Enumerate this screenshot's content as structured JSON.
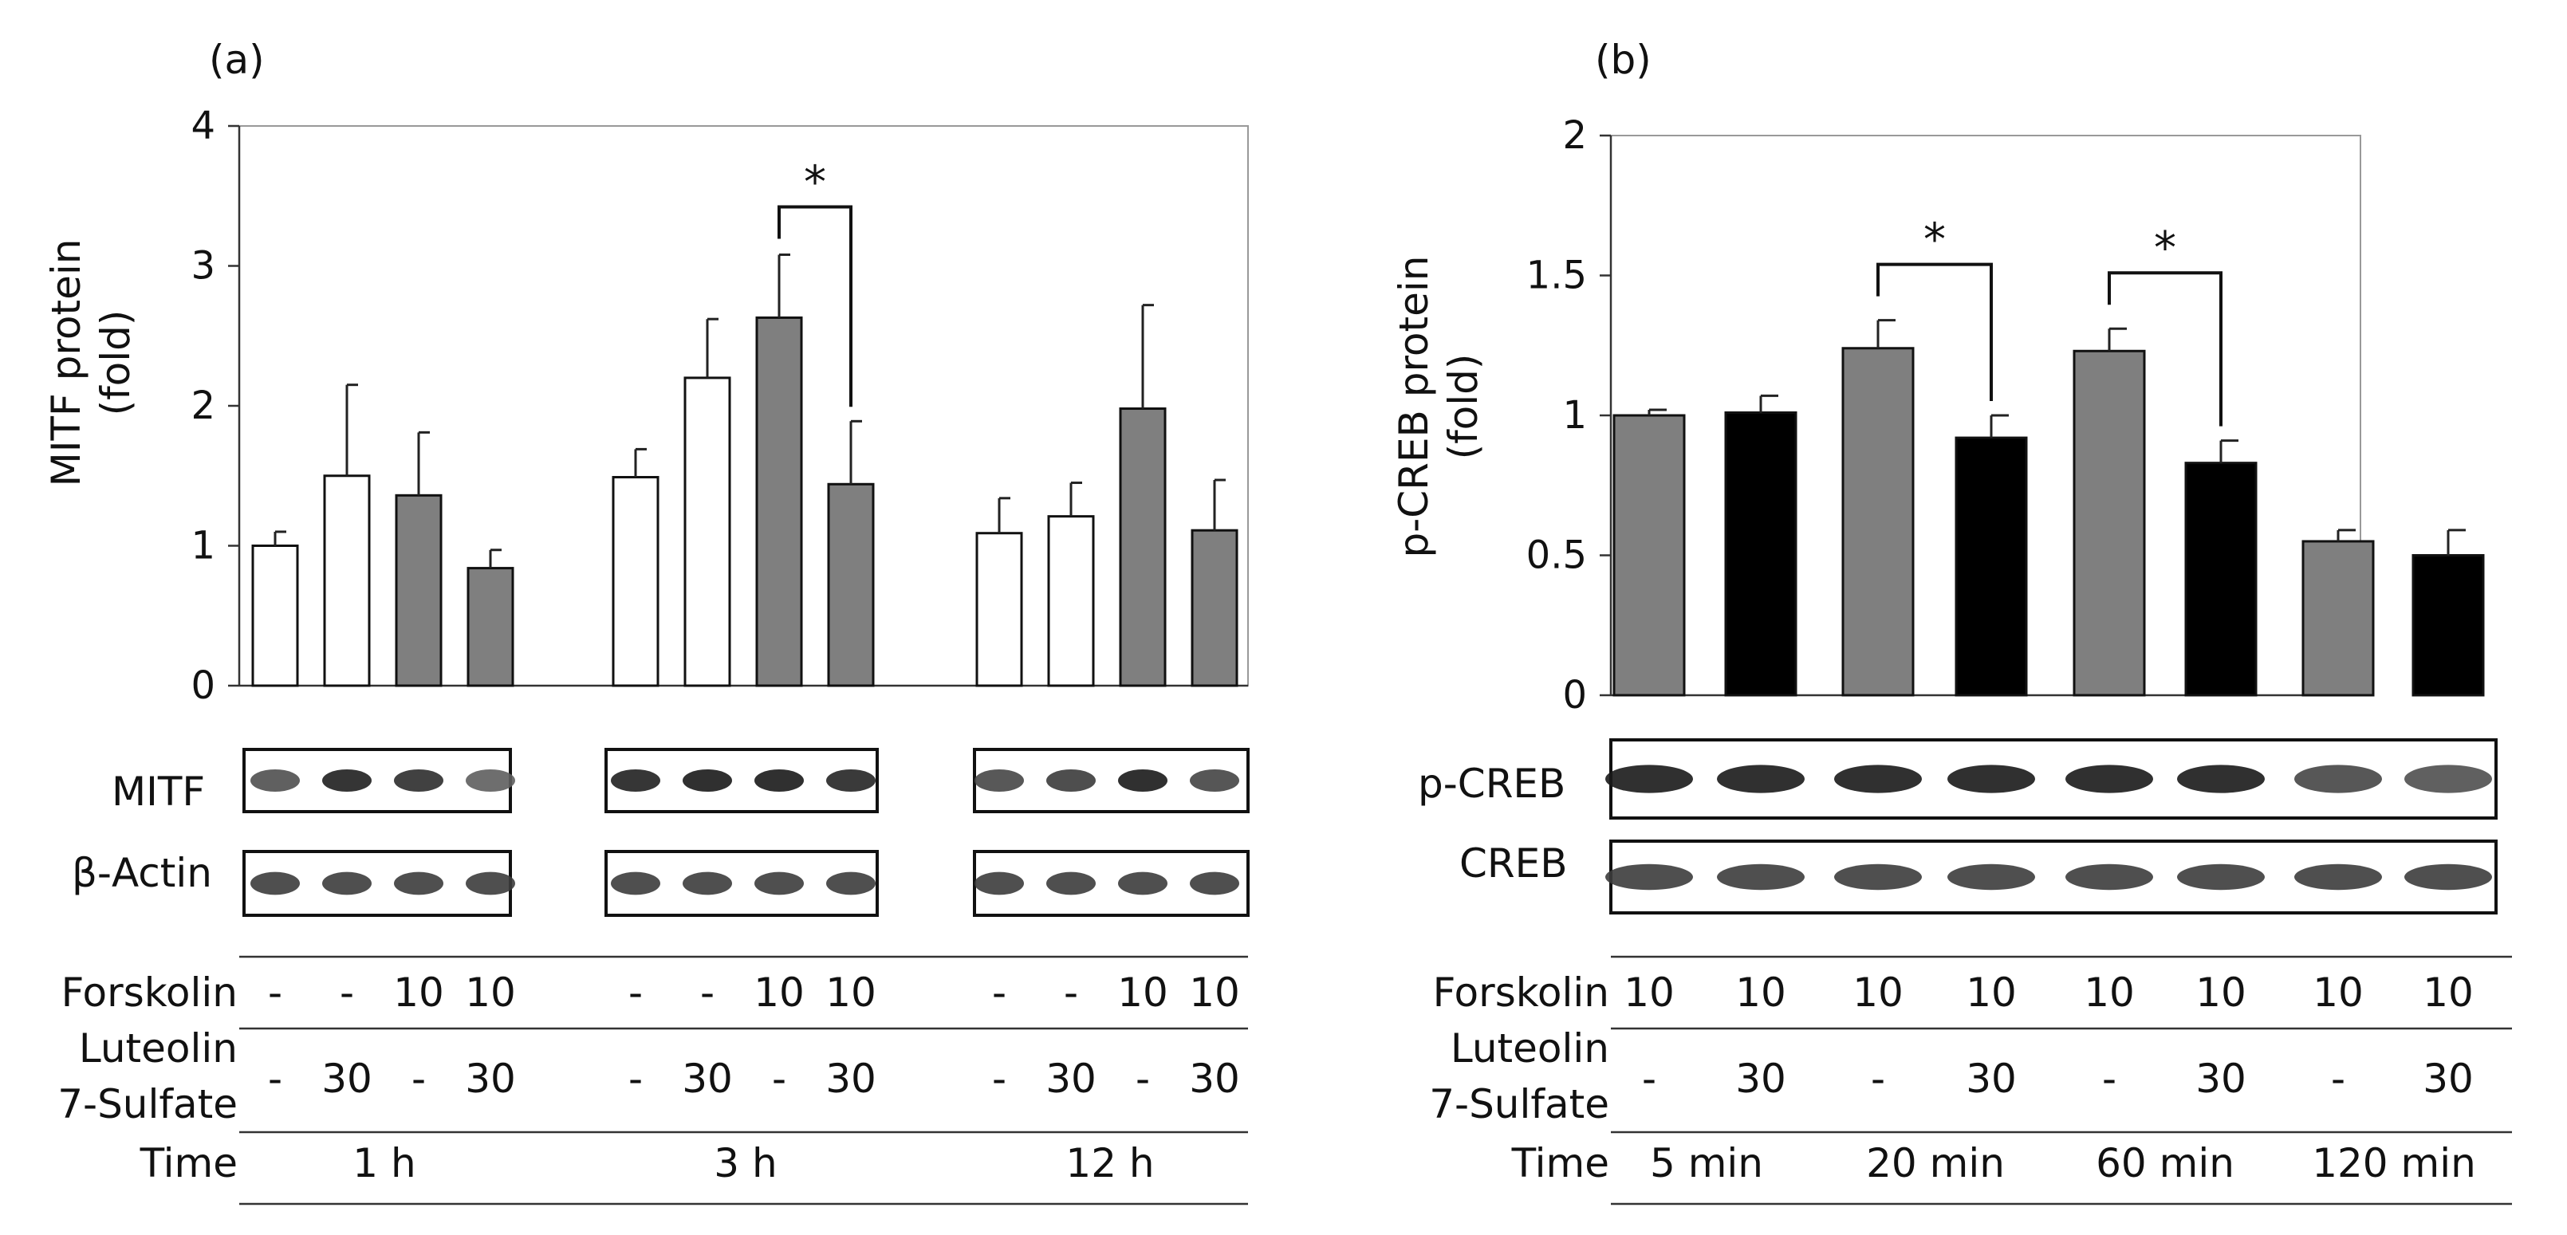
{
  "chart_data": [
    {
      "panel_label": "(a)",
      "type": "bar",
      "ylabel_line1": "MITF  protein",
      "ylabel_line2": "(fold)",
      "ylim": [
        0,
        4
      ],
      "yticks": [
        "0",
        "1",
        "2",
        "3",
        "4"
      ],
      "groups": [
        "1 h",
        "3 h",
        "12 h"
      ],
      "bar_colors": {
        "white": "#ffffff",
        "gray": "#7f7f7f",
        "black": "#000000"
      },
      "bars": [
        {
          "group": "1 h",
          "value": 1.0,
          "error": 0.1,
          "color": "white"
        },
        {
          "group": "1 h",
          "value": 1.5,
          "error": 0.65,
          "color": "white"
        },
        {
          "group": "1 h",
          "value": 1.36,
          "error": 0.45,
          "color": "gray"
        },
        {
          "group": "1 h",
          "value": 0.84,
          "error": 0.13,
          "color": "gray"
        },
        {
          "group": "3 h",
          "value": 1.49,
          "error": 0.2,
          "color": "white"
        },
        {
          "group": "3 h",
          "value": 2.2,
          "error": 0.42,
          "color": "white"
        },
        {
          "group": "3 h",
          "value": 2.63,
          "error": 0.45,
          "color": "gray"
        },
        {
          "group": "3 h",
          "value": 1.44,
          "error": 0.45,
          "color": "gray"
        },
        {
          "group": "12 h",
          "value": 1.09,
          "error": 0.25,
          "color": "white"
        },
        {
          "group": "12 h",
          "value": 1.21,
          "error": 0.24,
          "color": "white"
        },
        {
          "group": "12 h",
          "value": 1.98,
          "error": 0.74,
          "color": "gray"
        },
        {
          "group": "12 h",
          "value": 1.11,
          "error": 0.36,
          "color": "gray"
        }
      ],
      "significance": [
        {
          "from_bar": 6,
          "to_bar": 7,
          "label": "*"
        }
      ],
      "blots": [
        {
          "label": "MITF"
        },
        {
          "label": "β-Actin"
        }
      ],
      "table": {
        "row1_label": "Forskolin",
        "forskolin": [
          "-",
          "-",
          "10",
          "10",
          "-",
          "-",
          "10",
          "10",
          "-",
          "-",
          "10",
          "10"
        ],
        "row2_label_line1": "Luteolin",
        "row2_label_line2": "7-Sulfate",
        "luteolin": [
          "-",
          "30",
          "-",
          "30",
          "-",
          "30",
          "-",
          "30",
          "-",
          "30",
          "-",
          "30"
        ],
        "row3_label": "Time",
        "time": [
          "1  h",
          "3  h",
          "12  h"
        ]
      }
    },
    {
      "panel_label": "(b)",
      "type": "bar",
      "ylabel_line1": "p-CREB protein",
      "ylabel_line2": "(fold)",
      "ylim": [
        0,
        2
      ],
      "yticks": [
        "0",
        "0.5",
        "1",
        "1.5",
        "2"
      ],
      "groups": [
        "5  min",
        "20  min",
        "60  min",
        "120  min"
      ],
      "bar_colors": {
        "gray": "#7f7f7f",
        "black": "#000000"
      },
      "bars": [
        {
          "group": "5 min",
          "value": 1.0,
          "error": 0.02,
          "color": "gray"
        },
        {
          "group": "5 min",
          "value": 1.01,
          "error": 0.06,
          "color": "black"
        },
        {
          "group": "20 min",
          "value": 1.24,
          "error": 0.1,
          "color": "gray"
        },
        {
          "group": "20 min",
          "value": 0.92,
          "error": 0.08,
          "color": "black"
        },
        {
          "group": "60 min",
          "value": 1.23,
          "error": 0.08,
          "color": "gray"
        },
        {
          "group": "60 min",
          "value": 0.83,
          "error": 0.08,
          "color": "black"
        },
        {
          "group": "120 min",
          "value": 0.55,
          "error": 0.04,
          "color": "gray"
        },
        {
          "group": "120 min",
          "value": 0.5,
          "error": 0.09,
          "color": "black"
        }
      ],
      "significance": [
        {
          "from_bar": 2,
          "to_bar": 3,
          "label": "*"
        },
        {
          "from_bar": 4,
          "to_bar": 5,
          "label": "*"
        }
      ],
      "blots": [
        {
          "label": "p-CREB"
        },
        {
          "label": "CREB"
        }
      ],
      "table": {
        "row1_label": "Forskolin",
        "forskolin": [
          "10",
          "10",
          "10",
          "10",
          "10",
          "10",
          "10",
          "10"
        ],
        "row2_label_line1": "Luteolin",
        "row2_label_line2": "7-Sulfate",
        "luteolin": [
          "-",
          "30",
          "-",
          "30",
          "-",
          "30",
          "-",
          "30"
        ],
        "row3_label": "Time",
        "time": [
          "5  min",
          "20  min",
          "60  min",
          "120  min"
        ]
      }
    }
  ]
}
